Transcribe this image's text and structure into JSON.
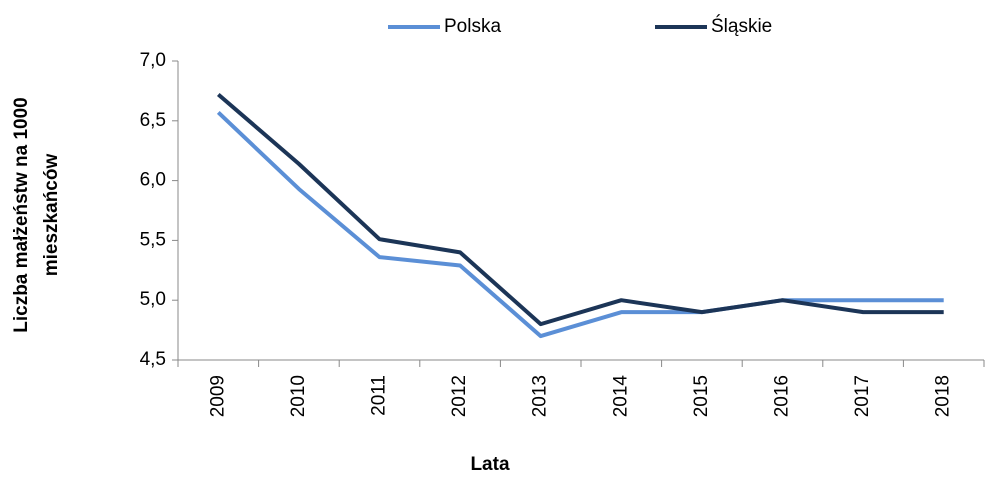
{
  "chart_data": {
    "type": "line",
    "categories": [
      "2009",
      "2010",
      "2011",
      "2012",
      "2013",
      "2014",
      "2015",
      "2016",
      "2017",
      "2018"
    ],
    "series": [
      {
        "name": "Polska",
        "color": "#5b8fd6",
        "values": [
          6.57,
          5.93,
          5.36,
          5.29,
          4.7,
          4.9,
          4.9,
          5.0,
          5.0,
          5.0
        ]
      },
      {
        "name": "Śląskie",
        "color": "#1c3557",
        "values": [
          6.72,
          6.14,
          5.51,
          5.4,
          4.8,
          5.0,
          4.9,
          5.0,
          4.9,
          4.9
        ]
      }
    ],
    "xlabel": "Lata",
    "ylabel": [
      "Liczba małżeństw na 1000",
      "mieszkańców"
    ],
    "ylim": [
      4.5,
      7.0
    ],
    "yticks": [
      {
        "value": 4.5,
        "label": "4,5"
      },
      {
        "value": 5.0,
        "label": "5,0"
      },
      {
        "value": 5.5,
        "label": "5,5"
      },
      {
        "value": 6.0,
        "label": "6,0"
      },
      {
        "value": 6.5,
        "label": "6,5"
      },
      {
        "value": 7.0,
        "label": "7,0"
      }
    ],
    "legend": "top"
  }
}
